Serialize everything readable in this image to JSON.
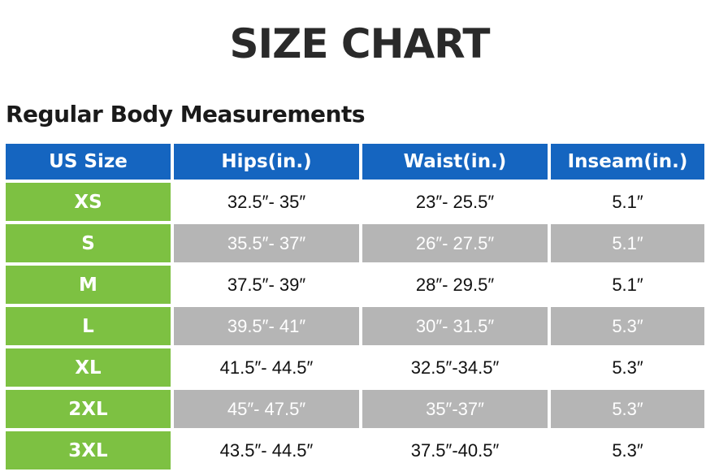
{
  "title": "SIZE CHART",
  "subtitle": "Regular Body Measurements",
  "colors": {
    "header_bg": "#1565c0",
    "size_bg": "#7dc142",
    "shaded_row_bg": "#b5b5b5"
  },
  "table": {
    "headers": [
      "US Size",
      "Hips(in.)",
      "Waist(in.)",
      "Inseam(in.)"
    ],
    "rows": [
      [
        "XS",
        "32.5″- 35″",
        "23″- 25.5″",
        "5.1″"
      ],
      [
        "S",
        "35.5″- 37″",
        "26″- 27.5″",
        "5.1″"
      ],
      [
        "M",
        "37.5″- 39″",
        "28″- 29.5″",
        "5.1″"
      ],
      [
        "L",
        "39.5″- 41″",
        "30″- 31.5″",
        "5.3″"
      ],
      [
        "XL",
        "41.5″- 44.5″",
        "32.5″-34.5″",
        "5.3″"
      ],
      [
        "2XL",
        "45″- 47.5″",
        "35″-37″",
        "5.3″"
      ],
      [
        "3XL",
        "43.5″- 44.5″",
        "37.5″-40.5″",
        "5.3″"
      ]
    ]
  }
}
